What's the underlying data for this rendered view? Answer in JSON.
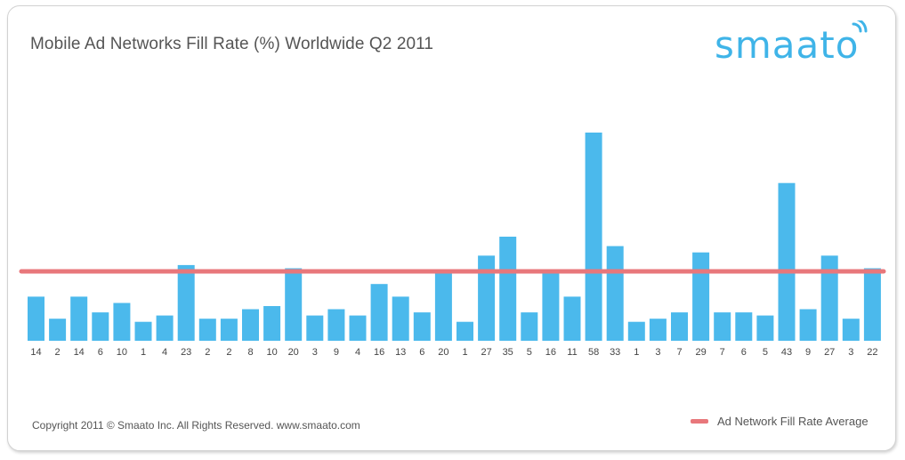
{
  "title": "Mobile Ad Networks Fill Rate (%) Worldwide Q2 2011",
  "logo": "smaato",
  "copyright": "Copyright 2011 © Smaato Inc. All Rights Reserved. www.smaato.com",
  "legend": {
    "label": "Ad Network Fill Rate Average"
  },
  "colors": {
    "bar": "#4bb9ec",
    "average_line": "#e8777b",
    "logo": "#3fb4e8"
  },
  "chart_data": {
    "type": "bar",
    "title": "Mobile Ad Networks Fill Rate (%) Worldwide Q2 2011",
    "categories": [
      "14",
      "2",
      "14",
      "6",
      "10",
      "1",
      "4",
      "23",
      "2",
      "2",
      "8",
      "10",
      "20",
      "3",
      "9",
      "4",
      "16",
      "13",
      "6",
      "20",
      "1",
      "27",
      "35",
      "5",
      "16",
      "11",
      "58",
      "33",
      "1",
      "3",
      "7",
      "29",
      "7",
      "6",
      "5",
      "43",
      "9",
      "27",
      "3",
      "22"
    ],
    "values": [
      14,
      7,
      14,
      9,
      12,
      6,
      8,
      24,
      7,
      7,
      10,
      11,
      23,
      8,
      10,
      8,
      18,
      14,
      9,
      22,
      6,
      27,
      33,
      9,
      22,
      14,
      66,
      30,
      6,
      7,
      9,
      28,
      9,
      9,
      8,
      50,
      10,
      27,
      7,
      23
    ],
    "series": [
      {
        "name": "Ad Network Fill Rate Average",
        "type": "line",
        "value": 22
      }
    ],
    "xlabel": "",
    "ylabel": "",
    "ylim": [
      0,
      66
    ],
    "grid": false,
    "legend_position": "bottom-right"
  }
}
